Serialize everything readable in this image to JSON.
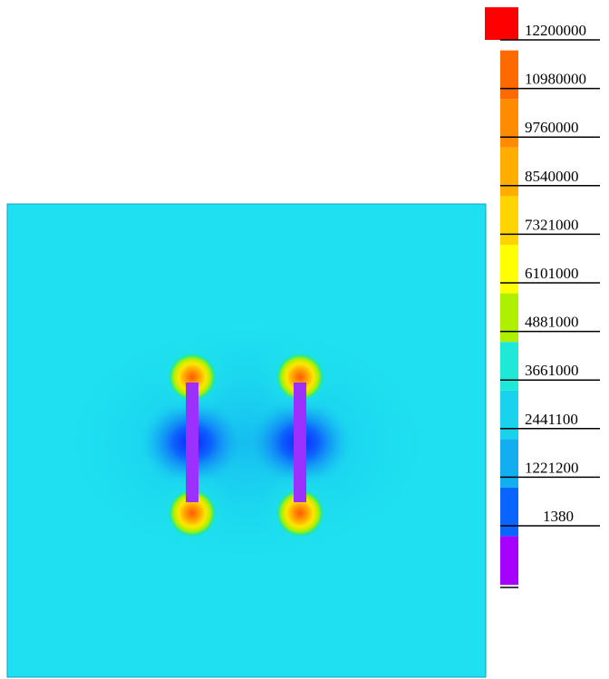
{
  "chart_data": {
    "type": "heatmap",
    "colorbar": {
      "labels": [
        "12200000",
        "10980000",
        "9760000",
        "8540000",
        "7321000",
        "6101000",
        "4881000",
        "3661000",
        "2441100",
        "1221200",
        "1380"
      ],
      "colors": [
        "#ff0000",
        "#ff6a00",
        "#ff8c00",
        "#ffae00",
        "#ffd400",
        "#ffff00",
        "#aef000",
        "#1ee8d8",
        "#19d2ec",
        "#12aef0",
        "#0a64ff",
        "#a600ff"
      ]
    },
    "field": {
      "background_color": "#1ee0f0",
      "low_color": "#0a3cff",
      "high_color": "#ffc800",
      "bar_color": "#9b30ff"
    },
    "bars": [
      {
        "name": "left-bar",
        "x": 0,
        "y_top": 1,
        "y_bottom": -1
      },
      {
        "name": "right-bar",
        "x": 1,
        "y_top": 1,
        "y_bottom": -1
      }
    ]
  }
}
